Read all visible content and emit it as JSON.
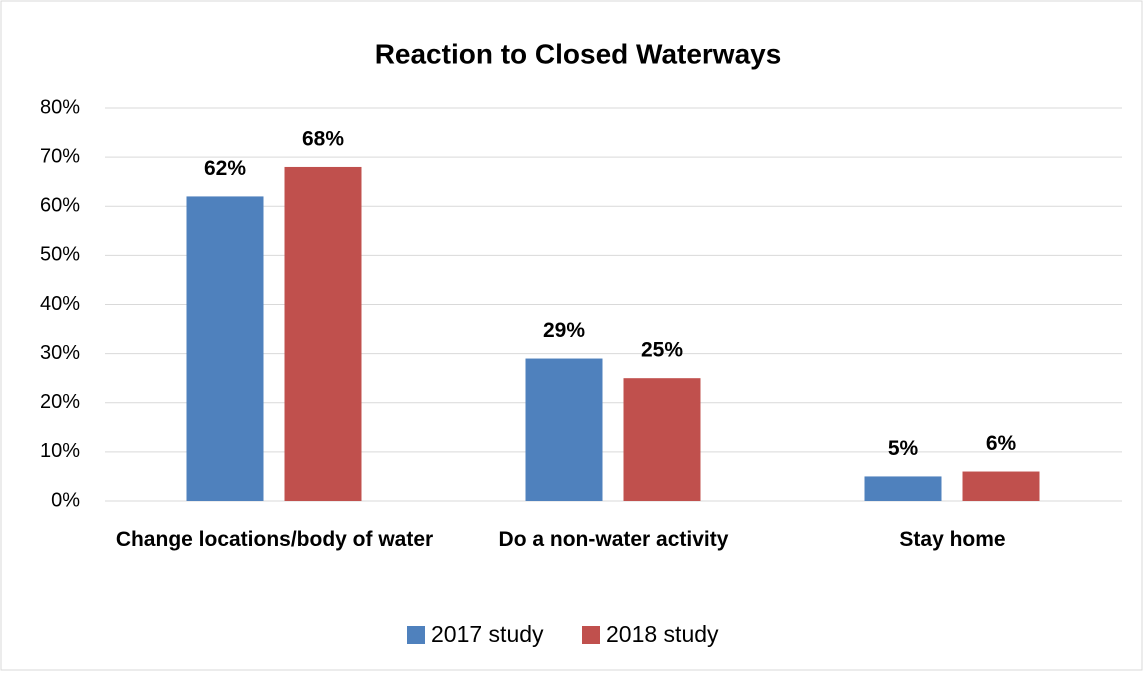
{
  "chart_data": {
    "type": "bar",
    "title": "Reaction to Closed Waterways",
    "categories": [
      "Change locations/body of water",
      "Do a non-water activity",
      "Stay home"
    ],
    "series": [
      {
        "name": "2017 study",
        "color": "#4f81bd",
        "values": [
          62,
          29,
          5
        ],
        "value_labels": [
          "62%",
          "29%",
          "5%"
        ]
      },
      {
        "name": "2018 study",
        "color": "#c0504d",
        "values": [
          68,
          25,
          6
        ],
        "value_labels": [
          "68%",
          "25%",
          "6%"
        ]
      }
    ],
    "ylim": [
      0,
      80
    ],
    "yticks": [
      {
        "value": 0,
        "label": "0%"
      },
      {
        "value": 10,
        "label": "10%"
      },
      {
        "value": 20,
        "label": "20%"
      },
      {
        "value": 30,
        "label": "30%"
      },
      {
        "value": 40,
        "label": "40%"
      },
      {
        "value": 50,
        "label": "50%"
      },
      {
        "value": 60,
        "label": "60%"
      },
      {
        "value": 70,
        "label": "70%"
      },
      {
        "value": 80,
        "label": "80%"
      }
    ],
    "grid": true,
    "legend": "bottom"
  }
}
